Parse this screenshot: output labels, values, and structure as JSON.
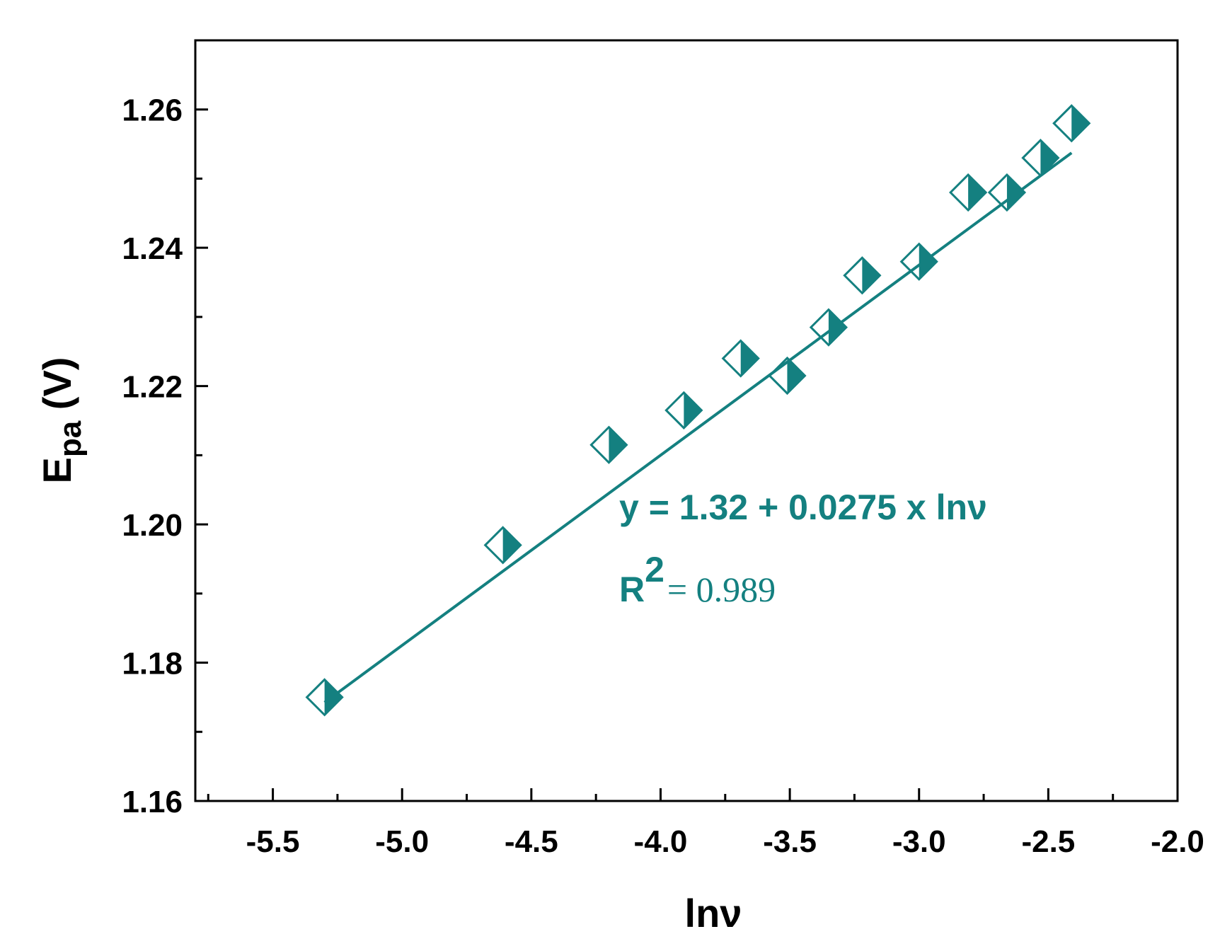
{
  "chart_data": {
    "type": "scatter",
    "title": "",
    "xlabel": "lnν",
    "ylabel": {
      "base": "E",
      "sub": "pa",
      "unit": " (V)"
    },
    "xlim": [
      -5.8,
      -2.0
    ],
    "ylim": [
      1.16,
      1.27
    ],
    "x_ticks": [
      -5.5,
      -5.0,
      -4.5,
      -4.0,
      -3.5,
      -3.0,
      -2.5,
      -2.0
    ],
    "x_tick_labels": [
      "-5.5",
      "-5.0",
      "-4.5",
      "-4.0",
      "-3.5",
      "-3.0",
      "-2.5",
      "-2.0"
    ],
    "y_ticks": [
      1.16,
      1.18,
      1.2,
      1.22,
      1.24,
      1.26
    ],
    "y_tick_labels": [
      "1.16",
      "1.18",
      "1.20",
      "1.22",
      "1.24",
      "1.26"
    ],
    "grid": false,
    "series": [
      {
        "name": "Epa",
        "marker": "half-filled-diamond",
        "color": "#148080",
        "x": [
          -5.3,
          -4.61,
          -4.2,
          -3.91,
          -3.69,
          -3.51,
          -3.35,
          -3.22,
          -3.0,
          -2.81,
          -2.66,
          -2.53,
          -2.41
        ],
        "y": [
          1.175,
          1.197,
          1.2115,
          1.2165,
          1.224,
          1.2215,
          1.2285,
          1.236,
          1.238,
          1.248,
          1.248,
          1.253,
          1.258
        ]
      }
    ],
    "fit": {
      "type": "linear",
      "intercept": 1.32,
      "slope": 0.0275,
      "x_range": [
        -5.3,
        -2.41
      ],
      "equation": "y = 1.32 + 0.0275 x lnν",
      "r2_label": "R",
      "r2_sup": "2",
      "r2_value": "= 0.989"
    }
  },
  "colors": {
    "series": "#148080",
    "axis": "#000000"
  }
}
